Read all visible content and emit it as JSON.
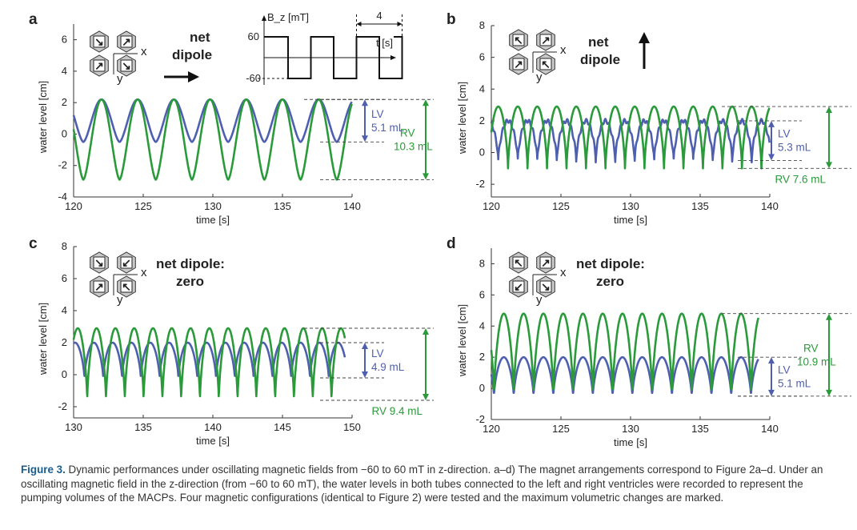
{
  "colors": {
    "lv": "#4f5fb0",
    "rv": "#2a9a3a",
    "axis": "#333333",
    "dash": "#444444",
    "hexfill": "#c8c8c8"
  },
  "panels": [
    {
      "label": "a",
      "ylabel": "water level [cm]",
      "xlabel": "time [s]",
      "xlim": [
        120,
        140
      ],
      "ylim": [
        -4,
        7
      ],
      "xticks": [
        "120",
        "125",
        "130",
        "135",
        "140"
      ],
      "xtick_values": [
        120,
        125,
        130,
        135,
        140
      ],
      "yticks": [
        "-4",
        "-2",
        "0",
        "2",
        "4",
        "6"
      ],
      "ytick_values": [
        -4,
        -2,
        0,
        2,
        4,
        6
      ],
      "dipole_text": [
        "net",
        "dipole"
      ],
      "dipole_arrow": "right-arrow-icon",
      "axis_labels": {
        "x": "x",
        "y": "y"
      },
      "magnets": [
        "↘",
        "↗",
        "↗",
        "↘"
      ],
      "inset": {
        "ylabel": "B_z [mT]",
        "xlabel": "t [s]",
        "high": "60",
        "low": "-60",
        "period_label": "4"
      },
      "lv": {
        "label": "LV",
        "volume": "5.1 mL",
        "max": 2.2,
        "min": -0.5
      },
      "rv": {
        "label": "RV",
        "volume": "10.3 mL",
        "max": 2.2,
        "min": -2.9
      }
    },
    {
      "label": "b",
      "ylabel": "water level [cm]",
      "xlabel": "time [s]",
      "xlim": [
        120,
        140
      ],
      "ylim": [
        -2.8,
        8
      ],
      "xticks": [
        "120",
        "125",
        "130",
        "135",
        "140"
      ],
      "xtick_values": [
        120,
        125,
        130,
        135,
        140
      ],
      "yticks": [
        "-2",
        "0",
        "2",
        "4",
        "6",
        "8"
      ],
      "ytick_values": [
        -2,
        0,
        2,
        4,
        6,
        8
      ],
      "dipole_text": [
        "net",
        "dipole"
      ],
      "dipole_arrow": "up-arrow-icon",
      "axis_labels": {
        "x": "x",
        "y": "y"
      },
      "magnets": [
        "↖",
        "↗",
        "↗",
        "↖"
      ],
      "lv": {
        "label": "LV",
        "volume": "5.3 mL",
        "max": 2.0,
        "min": -0.5
      },
      "rv": {
        "label": "RV 7.6 mL",
        "volume": "",
        "max": 2.9,
        "min": -1.0
      }
    },
    {
      "label": "c",
      "ylabel": "water level [cm]",
      "xlabel": "time [s]",
      "xlim": [
        130,
        150
      ],
      "ylim": [
        -2.7,
        8
      ],
      "xticks": [
        "130",
        "135",
        "140",
        "145",
        "150"
      ],
      "xtick_values": [
        130,
        135,
        140,
        145,
        150
      ],
      "yticks": [
        "-2",
        "0",
        "2",
        "4",
        "6",
        "8"
      ],
      "ytick_values": [
        -2,
        0,
        2,
        4,
        6,
        8
      ],
      "dipole_text": [
        "net dipole:",
        "zero"
      ],
      "dipole_arrow": "",
      "axis_labels": {
        "x": "x",
        "y": "y"
      },
      "magnets": [
        "↘",
        "↙",
        "↗",
        "↖"
      ],
      "lv": {
        "label": "LV",
        "volume": "4.9 mL",
        "max": 2.0,
        "min": -0.2
      },
      "rv": {
        "label": "RV 9.4 mL",
        "volume": "",
        "max": 2.9,
        "min": -1.6
      }
    },
    {
      "label": "d",
      "ylabel": "water level [cm]",
      "xlabel": "time [s]",
      "xlim": [
        120,
        140
      ],
      "ylim": [
        -2,
        9
      ],
      "xticks": [
        "120",
        "125",
        "130",
        "135",
        "140"
      ],
      "xtick_values": [
        120,
        125,
        130,
        135,
        140
      ],
      "yticks": [
        "-2",
        "0",
        "2",
        "4",
        "6",
        "8"
      ],
      "ytick_values": [
        -2,
        0,
        2,
        4,
        6,
        8
      ],
      "dipole_text": [
        "net dipole:",
        "zero"
      ],
      "dipole_arrow": "",
      "axis_labels": {
        "x": "x",
        "y": "y"
      },
      "magnets": [
        "↖",
        "↗",
        "↙",
        "↘"
      ],
      "lv": {
        "label": "LV",
        "volume": "5.1 mL",
        "max": 2.0,
        "min": -0.5
      },
      "rv": {
        "label": "RV",
        "volume": "10.9 mL",
        "max": 4.8,
        "min": -0.5
      }
    }
  ],
  "chart_data": [
    {
      "type": "line",
      "panel": "a",
      "xlabel": "time [s]",
      "ylabel": "water level [cm]",
      "xlim": [
        120,
        140
      ],
      "ylim": [
        -4,
        7
      ],
      "series": [
        {
          "name": "LV",
          "shape": "sin",
          "period": 2.6,
          "peak0": 122.0,
          "max": 2.2,
          "min": -0.5,
          "start": 120,
          "end": 140
        },
        {
          "name": "RV",
          "shape": "sin",
          "period": 2.6,
          "peak0": 122.0,
          "max": 2.2,
          "min": -2.9,
          "start": 120,
          "end": 140
        }
      ]
    },
    {
      "type": "line",
      "panel": "b",
      "xlabel": "time [s]",
      "ylabel": "water level [cm]",
      "xlim": [
        120,
        140
      ],
      "ylim": [
        -2.8,
        8
      ],
      "series": [
        {
          "name": "LV",
          "shape": "cusp",
          "period": 1.4,
          "peak0": 121.2,
          "max": 2.0,
          "min": -0.5,
          "start": 120,
          "end": 140
        },
        {
          "name": "RV",
          "shape": "cusp",
          "period": 1.4,
          "peak0": 121.9,
          "max": 2.9,
          "min": -1.0,
          "start": 120,
          "end": 140
        }
      ]
    },
    {
      "type": "line",
      "panel": "c",
      "xlabel": "time [s]",
      "ylabel": "water level [cm]",
      "xlim": [
        130,
        150
      ],
      "ylim": [
        -2.7,
        8
      ],
      "series": [
        {
          "name": "LV",
          "shape": "cusp",
          "period": 1.35,
          "peak0": 130.1,
          "max": 2.0,
          "min": -0.2,
          "start": 130,
          "end": 149.5
        },
        {
          "name": "RV",
          "shape": "cusp",
          "period": 1.35,
          "peak0": 130.3,
          "max": 2.9,
          "min": -1.6,
          "start": 130,
          "end": 149.5
        }
      ]
    },
    {
      "type": "line",
      "panel": "d",
      "xlabel": "time [s]",
      "ylabel": "water level [cm]",
      "xlim": [
        120,
        140
      ],
      "ylim": [
        -2,
        9
      ],
      "series": [
        {
          "name": "LV",
          "shape": "cusp",
          "period": 1.42,
          "peak0": 120.9,
          "max": 2.0,
          "min": -0.5,
          "start": 120,
          "end": 139.2
        },
        {
          "name": "RV",
          "shape": "cusp",
          "period": 1.42,
          "peak0": 120.9,
          "max": 4.8,
          "min": -0.5,
          "start": 120,
          "end": 139.2
        }
      ]
    }
  ],
  "caption": {
    "label": "Figure 3.",
    "text": "Dynamic performances under oscillating magnetic fields from −60 to 60 mT in z-direction. a–d) The magnet arrangements correspond to Figure 2a–d. Under an oscillating magnetic field in the z-direction (from −60 to 60 mT), the water levels in both tubes connected to the left and right ventricles were recorded to represent the pumping volumes of the MACPs. Four magnetic configurations (identical to Figure 2) were tested and the maximum volumetric changes are marked."
  }
}
